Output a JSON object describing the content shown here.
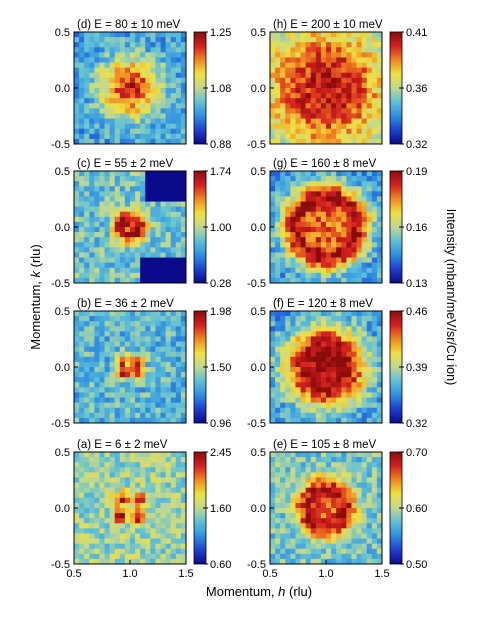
{
  "figure": {
    "ylabel": "Momentum, k (rlu)",
    "ylabel_main": "Momentum, ",
    "ylabel_var": "k",
    "ylabel_unit": " (rlu)",
    "xlabel_main": "Momentum, ",
    "xlabel_var": "h",
    "xlabel_unit": " (rlu)",
    "right_label": "Intensity (mbarn/meV/sr/Cu ion)",
    "colormap": [
      "#0a0a8c",
      "#1f3fd0",
      "#2f8fe0",
      "#5fc0d8",
      "#c0d890",
      "#f0e040",
      "#f08820",
      "#d42020",
      "#8a0c0c"
    ]
  },
  "chart_data": [
    {
      "type": "heatmap",
      "panel": "d",
      "title": "(d) E = 80 ± 10 meV",
      "x_range": [
        0.5,
        1.5
      ],
      "y_range": [
        -0.5,
        0.5
      ],
      "x_ticks": [],
      "y_ticks": [
        "0.5",
        "0.0",
        "-0.5"
      ],
      "colorbar": {
        "min": 0.88,
        "mid": 1.08,
        "max": 1.25,
        "labels": [
          "1.25",
          "1.08",
          "0.88"
        ]
      },
      "pattern": "disc",
      "peaks": [
        {
          "h": 1.0,
          "k": 0.0,
          "intensity": 1.22
        }
      ],
      "ring_radius": 0.0,
      "feature_width": 0.18,
      "background": 0.99
    },
    {
      "type": "heatmap",
      "panel": "h",
      "title": "(h) E = 200 ± 10 meV",
      "x_range": [
        0.5,
        1.5
      ],
      "y_range": [
        -0.5,
        0.5
      ],
      "x_ticks": [],
      "y_ticks": [
        "0.5",
        "0.0",
        "-0.5"
      ],
      "colorbar": {
        "min": 0.32,
        "mid": 0.36,
        "max": 0.41,
        "labels": [
          "0.41",
          "0.36",
          "0.32"
        ]
      },
      "pattern": "broad",
      "peaks": [
        {
          "h": 1.0,
          "k": 0.0,
          "intensity": 0.405
        }
      ],
      "ring_radius": 0.0,
      "feature_width": 0.42,
      "background": 0.35
    },
    {
      "type": "heatmap",
      "panel": "c",
      "title": "(c) E = 55 ± 2 meV",
      "x_range": [
        0.5,
        1.5
      ],
      "y_range": [
        -0.5,
        0.5
      ],
      "x_ticks": [],
      "y_ticks": [
        "0.5",
        "0.0",
        "-0.5"
      ],
      "colorbar": {
        "min": 0.28,
        "mid": 1.0,
        "max": 1.74,
        "labels": [
          "1.74",
          "1.00",
          "0.28"
        ]
      },
      "pattern": "ring",
      "peaks": [
        {
          "h": 1.0,
          "k": 0.0,
          "intensity": 1.7
        }
      ],
      "ring_radius": 0.07,
      "feature_width": 0.06,
      "background": 0.85,
      "masked_regions": [
        {
          "h_min": 1.14,
          "h_max": 1.5,
          "k_min": 0.22,
          "k_max": 0.5
        },
        {
          "h_min": 1.1,
          "h_max": 1.5,
          "k_min": -0.5,
          "k_max": -0.28
        }
      ]
    },
    {
      "type": "heatmap",
      "panel": "g",
      "title": "(g) E = 160 ± 8 meV",
      "x_range": [
        0.5,
        1.5
      ],
      "y_range": [
        -0.5,
        0.5
      ],
      "x_ticks": [],
      "y_ticks": [
        "0.5",
        "0.0",
        "-0.5"
      ],
      "colorbar": {
        "min": 0.13,
        "mid": 0.16,
        "max": 0.19,
        "labels": [
          "0.19",
          "0.16",
          "0.13"
        ]
      },
      "pattern": "ring",
      "peaks": [
        {
          "h": 1.0,
          "k": 0.0,
          "intensity": 0.188
        }
      ],
      "ring_radius": 0.26,
      "feature_width": 0.1,
      "background": 0.148
    },
    {
      "type": "heatmap",
      "panel": "b",
      "title": "(b) E = 36 ± 2 meV",
      "x_range": [
        0.5,
        1.5
      ],
      "y_range": [
        -0.5,
        0.5
      ],
      "x_ticks": [],
      "y_ticks": [
        "0.5",
        "0.0",
        "-0.5"
      ],
      "colorbar": {
        "min": 0.96,
        "mid": 1.5,
        "max": 1.98,
        "labels": [
          "1.98",
          "1.50",
          "0.96"
        ]
      },
      "pattern": "spots",
      "peaks": [
        {
          "h": 0.94,
          "k": 0.05,
          "intensity": 1.95
        },
        {
          "h": 1.06,
          "k": 0.05,
          "intensity": 1.95
        },
        {
          "h": 0.94,
          "k": -0.05,
          "intensity": 1.95
        },
        {
          "h": 1.06,
          "k": -0.05,
          "intensity": 1.95
        }
      ],
      "ring_radius": 0.0,
      "feature_width": 0.045,
      "background": 1.32
    },
    {
      "type": "heatmap",
      "panel": "f",
      "title": "(f) E = 120 ± 8 meV",
      "x_range": [
        0.5,
        1.5
      ],
      "y_range": [
        -0.5,
        0.5
      ],
      "x_ticks": [],
      "y_ticks": [
        "0.5",
        "0.0",
        "-0.5"
      ],
      "colorbar": {
        "min": 0.32,
        "mid": 0.39,
        "max": 0.46,
        "labels": [
          "0.46",
          "0.39",
          "0.32"
        ]
      },
      "pattern": "disc",
      "peaks": [
        {
          "h": 1.0,
          "k": 0.0,
          "intensity": 0.455
        }
      ],
      "ring_radius": 0.16,
      "feature_width": 0.16,
      "background": 0.36
    },
    {
      "type": "heatmap",
      "panel": "a",
      "title": "(a) E = 6 ± 2 meV",
      "x_range": [
        0.5,
        1.5
      ],
      "y_range": [
        -0.5,
        0.5
      ],
      "x_ticks": [
        "0.5",
        "1.0",
        "1.5"
      ],
      "y_ticks": [
        "0.5",
        "0.0",
        "-0.5"
      ],
      "colorbar": {
        "min": 0.6,
        "mid": 1.6,
        "max": 2.45,
        "labels": [
          "2.45",
          "1.60",
          "0.60"
        ]
      },
      "pattern": "spots",
      "peaks": [
        {
          "h": 0.92,
          "k": 0.08,
          "intensity": 2.45
        },
        {
          "h": 1.08,
          "k": 0.08,
          "intensity": 2.45
        },
        {
          "h": 0.92,
          "k": -0.08,
          "intensity": 2.45
        },
        {
          "h": 1.08,
          "k": -0.08,
          "intensity": 2.45
        }
      ],
      "ring_radius": 0.0,
      "feature_width": 0.045,
      "background": 1.45
    },
    {
      "type": "heatmap",
      "panel": "e",
      "title": "(e) E = 105 ± 8 meV",
      "x_range": [
        0.5,
        1.5
      ],
      "y_range": [
        -0.5,
        0.5
      ],
      "x_ticks": [
        "0.5",
        "1.0",
        "1.5"
      ],
      "y_ticks": [
        "0.5",
        "0.0",
        "-0.5"
      ],
      "colorbar": {
        "min": 0.5,
        "mid": 0.6,
        "max": 0.7,
        "labels": [
          "0.70",
          "0.60",
          "0.50"
        ]
      },
      "pattern": "ring",
      "peaks": [
        {
          "h": 1.0,
          "k": 0.0,
          "intensity": 0.69
        }
      ],
      "ring_radius": 0.16,
      "feature_width": 0.09,
      "background": 0.58
    }
  ]
}
